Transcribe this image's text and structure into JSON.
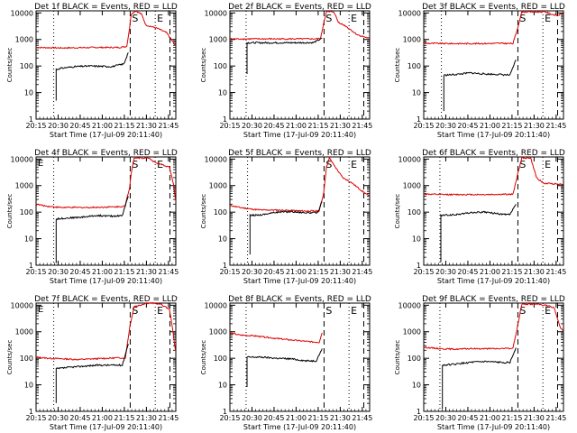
{
  "chart_data": {
    "type": "line",
    "x_ticks": [
      "20:15",
      "20:30",
      "20:45",
      "21:00",
      "21:15",
      "21:30",
      "21:45"
    ],
    "y_ticks": [
      "1",
      "10",
      "100",
      "1000",
      "10000"
    ],
    "y_scale": "log",
    "ylim": [
      1,
      12000
    ],
    "xlim_min_after_start": [
      3.33,
      98.33
    ],
    "xlabel": "Start Time (17-Jul-09 20:11:40)",
    "ylabel": "Counts/sec",
    "colors": {
      "events": "#000000",
      "lld": "#dd0000"
    },
    "series_legend": {
      "black": "BLACK = Events",
      "red": "RED = LLD"
    },
    "markers": [
      {
        "label": "S",
        "style": "dashed",
        "x": "21:19"
      },
      {
        "label": "E",
        "style": "dotted",
        "x": "21:36"
      },
      {
        "label": "",
        "style": "dashed",
        "x": "21:46"
      }
    ],
    "panels": [
      {
        "title": "Det 1f  BLACK = Events, RED = LLD",
        "corner_letter": "",
        "black_start": "20:27",
        "lld": [
          [
            3.33,
            500
          ],
          [
            20,
            480
          ],
          [
            45,
            500
          ],
          [
            60,
            500
          ],
          [
            65,
            550
          ],
          [
            67,
            3000
          ],
          [
            68,
            9000
          ],
          [
            71,
            12000
          ],
          [
            75,
            9000
          ],
          [
            78,
            3500
          ],
          [
            86,
            2600
          ],
          [
            92,
            1800
          ],
          [
            98,
            600
          ]
        ],
        "events": [
          [
            17,
            5
          ],
          [
            17,
            75
          ],
          [
            22,
            85
          ],
          [
            30,
            95
          ],
          [
            40,
            100
          ],
          [
            55,
            95
          ],
          [
            63,
            120
          ],
          [
            66,
            320
          ]
        ]
      },
      {
        "title": "Det 2f  BLACK = Events, RED = LLD",
        "corner_letter": "",
        "black_start": "20:26",
        "lld": [
          [
            3.33,
            1050
          ],
          [
            20,
            1050
          ],
          [
            40,
            1050
          ],
          [
            60,
            1050
          ],
          [
            65,
            1080
          ],
          [
            67,
            4000
          ],
          [
            69,
            11000
          ],
          [
            74,
            11000
          ],
          [
            77,
            4500
          ],
          [
            82,
            3200
          ],
          [
            90,
            1500
          ],
          [
            98,
            1100
          ]
        ],
        "events": [
          [
            15,
            50
          ],
          [
            15,
            750
          ],
          [
            30,
            750
          ],
          [
            45,
            750
          ],
          [
            60,
            760
          ],
          [
            66,
            1100
          ]
        ]
      },
      {
        "title": "Det 3f  BLACK = Events, RED = LLD",
        "corner_letter": "",
        "black_start": "20:27",
        "lld": [
          [
            3.33,
            720
          ],
          [
            20,
            700
          ],
          [
            40,
            700
          ],
          [
            55,
            720
          ],
          [
            64,
            700
          ],
          [
            67,
            2500
          ],
          [
            70,
            11000
          ],
          [
            80,
            11000
          ],
          [
            86,
            11000
          ],
          [
            90,
            9000
          ],
          [
            94,
            8000
          ],
          [
            98,
            9500
          ]
        ],
        "events": [
          [
            17,
            2
          ],
          [
            17,
            45
          ],
          [
            25,
            48
          ],
          [
            35,
            55
          ],
          [
            45,
            50
          ],
          [
            55,
            48
          ],
          [
            62,
            45
          ],
          [
            66,
            170
          ]
        ]
      },
      {
        "title": "Det 4f  BLACK = Events, RED = LLD",
        "corner_letter": "E",
        "black_start": "20:27",
        "lld": [
          [
            3.33,
            200
          ],
          [
            10,
            170
          ],
          [
            20,
            150
          ],
          [
            30,
            150
          ],
          [
            40,
            150
          ],
          [
            50,
            155
          ],
          [
            60,
            160
          ],
          [
            64,
            175
          ],
          [
            67,
            900
          ],
          [
            68,
            3000
          ],
          [
            70,
            11000
          ],
          [
            76,
            11000
          ],
          [
            80,
            11000
          ],
          [
            85,
            7000
          ],
          [
            94,
            5000
          ],
          [
            97,
            1000
          ],
          [
            98,
            300
          ]
        ],
        "events": [
          [
            17,
            1.2
          ],
          [
            17,
            55
          ],
          [
            24,
            60
          ],
          [
            35,
            65
          ],
          [
            45,
            75
          ],
          [
            55,
            70
          ],
          [
            62,
            75
          ],
          [
            66,
            400
          ]
        ]
      },
      {
        "title": "Det 5f  BLACK = Events, RED = LLD",
        "corner_letter": "",
        "black_start": "20:27",
        "lld": [
          [
            3.33,
            180
          ],
          [
            10,
            150
          ],
          [
            18,
            130
          ],
          [
            25,
            120
          ],
          [
            35,
            120
          ],
          [
            45,
            115
          ],
          [
            55,
            110
          ],
          [
            64,
            110
          ],
          [
            67,
            500
          ],
          [
            69,
            5000
          ],
          [
            71,
            11000
          ],
          [
            75,
            5000
          ],
          [
            80,
            2000
          ],
          [
            86,
            1300
          ],
          [
            92,
            700
          ],
          [
            98,
            400
          ]
        ],
        "events": [
          [
            17,
            2.5
          ],
          [
            17,
            75
          ],
          [
            25,
            80
          ],
          [
            35,
            100
          ],
          [
            45,
            105
          ],
          [
            55,
            95
          ],
          [
            63,
            95
          ],
          [
            66,
            250
          ]
        ]
      },
      {
        "title": "Det 6f  BLACK = Events, RED = LLD",
        "corner_letter": "",
        "black_start": "20:26",
        "lld": [
          [
            3.33,
            480
          ],
          [
            15,
            460
          ],
          [
            30,
            460
          ],
          [
            45,
            460
          ],
          [
            60,
            470
          ],
          [
            64,
            470
          ],
          [
            67,
            2500
          ],
          [
            70,
            11000
          ],
          [
            76,
            11000
          ],
          [
            80,
            2000
          ],
          [
            85,
            1200
          ],
          [
            90,
            1200
          ],
          [
            98,
            1100
          ]
        ],
        "events": [
          [
            15,
            1.3
          ],
          [
            15,
            75
          ],
          [
            25,
            80
          ],
          [
            35,
            95
          ],
          [
            45,
            100
          ],
          [
            55,
            85
          ],
          [
            62,
            80
          ],
          [
            66,
            200
          ]
        ]
      },
      {
        "title": "Det 7f  BLACK = Events, RED = LLD",
        "corner_letter": "E",
        "black_start": "20:27",
        "lld": [
          [
            3.33,
            110
          ],
          [
            12,
            100
          ],
          [
            22,
            95
          ],
          [
            32,
            90
          ],
          [
            42,
            95
          ],
          [
            52,
            100
          ],
          [
            60,
            105
          ],
          [
            64,
            100
          ],
          [
            67,
            1500
          ],
          [
            70,
            9000
          ],
          [
            74,
            10000
          ],
          [
            78,
            12000
          ],
          [
            82,
            12000
          ],
          [
            88,
            11000
          ],
          [
            94,
            7000
          ],
          [
            96,
            1500
          ],
          [
            98,
            200
          ]
        ],
        "events": [
          [
            17,
            2
          ],
          [
            17,
            40
          ],
          [
            25,
            45
          ],
          [
            35,
            50
          ],
          [
            45,
            55
          ],
          [
            55,
            55
          ],
          [
            62,
            55
          ],
          [
            66,
            350
          ]
        ]
      },
      {
        "title": "Det 8f  BLACK = Events, RED = LLD",
        "corner_letter": "",
        "black_start": "20:26",
        "lld": [
          [
            3.33,
            900
          ],
          [
            10,
            750
          ],
          [
            20,
            700
          ],
          [
            30,
            600
          ],
          [
            40,
            520
          ],
          [
            50,
            460
          ],
          [
            58,
            420
          ],
          [
            64,
            400
          ],
          [
            66,
            900
          ]
        ],
        "events": [
          [
            15,
            8
          ],
          [
            15,
            110
          ],
          [
            25,
            110
          ],
          [
            35,
            100
          ],
          [
            45,
            95
          ],
          [
            55,
            80
          ],
          [
            62,
            80
          ],
          [
            66,
            230
          ]
        ]
      },
      {
        "title": "Det 9f  BLACK = Events, RED = LLD",
        "corner_letter": "",
        "black_start": "20:26",
        "lld": [
          [
            3.33,
            260
          ],
          [
            15,
            230
          ],
          [
            25,
            220
          ],
          [
            35,
            230
          ],
          [
            45,
            230
          ],
          [
            55,
            230
          ],
          [
            64,
            240
          ],
          [
            67,
            1500
          ],
          [
            70,
            11000
          ],
          [
            75,
            11000
          ],
          [
            80,
            11000
          ],
          [
            86,
            10000
          ],
          [
            92,
            8000
          ],
          [
            96,
            1500
          ],
          [
            98,
            1100
          ]
        ],
        "events": [
          [
            16,
            1.2
          ],
          [
            16,
            55
          ],
          [
            25,
            60
          ],
          [
            35,
            70
          ],
          [
            45,
            75
          ],
          [
            55,
            70
          ],
          [
            62,
            70
          ],
          [
            66,
            250
          ]
        ]
      }
    ]
  }
}
